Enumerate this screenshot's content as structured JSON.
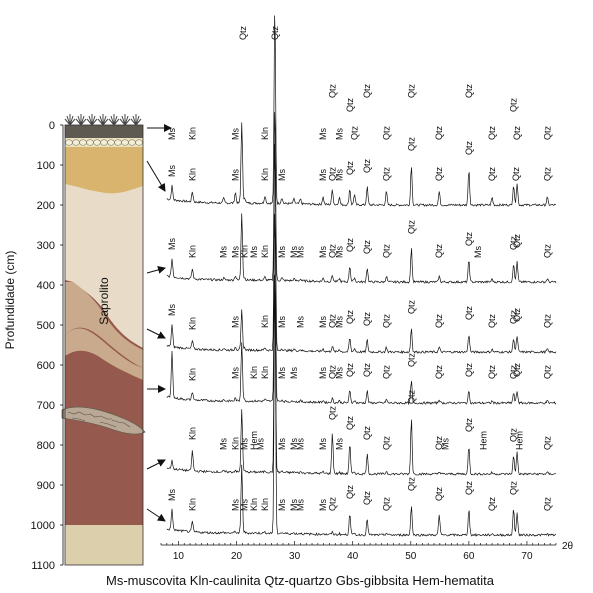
{
  "profile": {
    "depth_axis_label": "Profundidade (cm)",
    "depth_ticks": [
      "0",
      "100",
      "200",
      "300",
      "400",
      "500",
      "600",
      "700",
      "800",
      "900",
      "1000",
      "1100"
    ],
    "horizon_label": "Saprolito",
    "depth_range_cm": [
      0,
      1100
    ],
    "sample_depths_cm": [
      90,
      370,
      510,
      660,
      860,
      960
    ],
    "colors": {
      "topsoil": "#5e5a52",
      "pebble_band": "#e9e3c4",
      "yellow_layer": "#d8b46e",
      "saprolite_light": "#e8dcc8",
      "saprolite_mid": "#c9aa8c",
      "lower_red": "#955a4d",
      "base_layer": "#dccfab",
      "grass": "#444444"
    }
  },
  "xrd": {
    "x_axis_label": "2θ",
    "x_ticks": [
      "10",
      "20",
      "30",
      "40",
      "50",
      "60",
      "70"
    ],
    "x_range": [
      7,
      75
    ],
    "top_labels": [
      {
        "text": "Qtz",
        "x": 21.1,
        "row": 0
      },
      {
        "text": "Qtz",
        "x": 26.6,
        "row": 0
      },
      {
        "text": "Ms",
        "x": 8.9,
        "row": 2
      },
      {
        "text": "Kln",
        "x": 12.4,
        "row": 2
      },
      {
        "text": "Ms",
        "x": 19.8,
        "row": 2
      },
      {
        "text": "Kln",
        "x": 24.9,
        "row": 2
      },
      {
        "text": "Ms",
        "x": 34.9,
        "row": 2
      },
      {
        "text": "Ms",
        "x": 37.7,
        "row": 2
      },
      {
        "text": "Qtz",
        "x": 36.5,
        "row": 1
      },
      {
        "text": "Qtz",
        "x": 39.5,
        "row": 1
      },
      {
        "text": "Qtz",
        "x": 40.3,
        "row": 2
      },
      {
        "text": "Qtz",
        "x": 42.5,
        "row": 1
      },
      {
        "text": "Qtz",
        "x": 45.8,
        "row": 2
      },
      {
        "text": "Qtz",
        "x": 50.1,
        "row": 1
      },
      {
        "text": "Qtz",
        "x": 54.9,
        "row": 2
      },
      {
        "text": "Qtz",
        "x": 60.0,
        "row": 1
      },
      {
        "text": "Qtz",
        "x": 64.0,
        "row": 2
      },
      {
        "text": "Qtz",
        "x": 67.7,
        "row": 1
      },
      {
        "text": "Qtz",
        "x": 68.3,
        "row": 2
      },
      {
        "text": "Qtz",
        "x": 73.5,
        "row": 2
      }
    ],
    "patterns": [
      {
        "depth_cm": 90,
        "labels": [
          {
            "text": "Ms",
            "x": 8.9
          },
          {
            "text": "Kln",
            "x": 12.4
          },
          {
            "text": "Ms",
            "x": 19.8
          },
          {
            "text": "Ms",
            "x": 27.8
          },
          {
            "text": "Kln",
            "x": 24.9
          },
          {
            "text": "Ms",
            "x": 34.9
          },
          {
            "text": "Ms",
            "x": 37.7
          },
          {
            "text": "Qtz",
            "x": 36.5
          },
          {
            "text": "Qtz",
            "x": 39.5
          },
          {
            "text": "Qtz",
            "x": 42.5
          },
          {
            "text": "Qtz",
            "x": 45.8
          },
          {
            "text": "Qtz",
            "x": 50.1
          },
          {
            "text": "Qtz",
            "x": 54.9
          },
          {
            "text": "Qtz",
            "x": 60.0
          },
          {
            "text": "Qtz",
            "x": 64.0
          },
          {
            "text": "Qtz",
            "x": 68.1
          },
          {
            "text": "Qtz",
            "x": 73.5
          }
        ]
      },
      {
        "depth_cm": 370,
        "labels": [
          {
            "text": "Ms",
            "x": 8.9
          },
          {
            "text": "Kln",
            "x": 12.4
          },
          {
            "text": "Ms",
            "x": 17.8
          },
          {
            "text": "Ms",
            "x": 19.8
          },
          {
            "text": "Kln",
            "x": 21.4
          },
          {
            "text": "Ms",
            "x": 23.0
          },
          {
            "text": "Kln",
            "x": 24.9
          },
          {
            "text": "Ms",
            "x": 27.8
          },
          {
            "text": "Ms",
            "x": 29.9
          },
          {
            "text": "Ms",
            "x": 31.0
          },
          {
            "text": "Ms",
            "x": 34.9
          },
          {
            "text": "Ms",
            "x": 37.7
          },
          {
            "text": "Qtz",
            "x": 36.5
          },
          {
            "text": "Qtz",
            "x": 39.5
          },
          {
            "text": "Qtz",
            "x": 42.5
          },
          {
            "text": "Qtz",
            "x": 45.8
          },
          {
            "text": "Qtz",
            "x": 50.1
          },
          {
            "text": "Qtz",
            "x": 54.9
          },
          {
            "text": "Qtz",
            "x": 60.0
          },
          {
            "text": "Ms",
            "x": 61.6
          },
          {
            "text": "Qtz",
            "x": 67.7
          },
          {
            "text": "Qtz",
            "x": 68.3
          },
          {
            "text": "Qtz",
            "x": 73.5
          }
        ]
      },
      {
        "depth_cm": 510,
        "labels": [
          {
            "text": "Ms",
            "x": 8.9
          },
          {
            "text": "Kln",
            "x": 12.4
          },
          {
            "text": "Ms",
            "x": 19.8
          },
          {
            "text": "Kln",
            "x": 24.9
          },
          {
            "text": "Ms",
            "x": 27.8
          },
          {
            "text": "Ms",
            "x": 31.0
          },
          {
            "text": "Ms",
            "x": 34.9
          },
          {
            "text": "Ms",
            "x": 37.7
          },
          {
            "text": "Qtz",
            "x": 36.5
          },
          {
            "text": "Qtz",
            "x": 39.5
          },
          {
            "text": "Qtz",
            "x": 42.5
          },
          {
            "text": "Qtz",
            "x": 45.8
          },
          {
            "text": "Qtz",
            "x": 50.1
          },
          {
            "text": "Qtz",
            "x": 54.9
          },
          {
            "text": "Qtz",
            "x": 60.0
          },
          {
            "text": "Qtz",
            "x": 64.0
          },
          {
            "text": "Qtz",
            "x": 67.7
          },
          {
            "text": "Qtz",
            "x": 68.3
          },
          {
            "text": "Qtz",
            "x": 73.5
          }
        ]
      },
      {
        "depth_cm": 660,
        "labels": [
          {
            "text": "Kln",
            "x": 12.4
          },
          {
            "text": "Ms",
            "x": 19.8
          },
          {
            "text": "Kln",
            "x": 23.0
          },
          {
            "text": "Kln",
            "x": 24.9
          },
          {
            "text": "Ms",
            "x": 27.8
          },
          {
            "text": "Ms",
            "x": 29.9
          },
          {
            "text": "Ms",
            "x": 34.9
          },
          {
            "text": "Ms",
            "x": 37.7
          },
          {
            "text": "Qtz",
            "x": 36.5
          },
          {
            "text": "Qtz",
            "x": 39.5
          },
          {
            "text": "Qtz",
            "x": 42.5
          },
          {
            "text": "Qtz",
            "x": 45.8
          },
          {
            "text": "Qtz",
            "x": 50.1
          },
          {
            "text": "Qtz",
            "x": 54.9
          },
          {
            "text": "Qtz",
            "x": 60.0
          },
          {
            "text": "Qtz",
            "x": 64.0
          },
          {
            "text": "Qtz",
            "x": 67.7
          },
          {
            "text": "Qtz",
            "x": 68.3
          },
          {
            "text": "Qtz",
            "x": 73.5
          }
        ]
      },
      {
        "depth_cm": 860,
        "labels": [
          {
            "text": "Kln",
            "x": 12.4
          },
          {
            "text": "Ms",
            "x": 17.8
          },
          {
            "text": "Kln",
            "x": 19.8
          },
          {
            "text": "Ms",
            "x": 21.4
          },
          {
            "text": "Hem",
            "x": 23.0
          },
          {
            "text": "Ms",
            "x": 24.1
          },
          {
            "text": "Ms",
            "x": 27.8
          },
          {
            "text": "Ms",
            "x": 29.9
          },
          {
            "text": "Ms",
            "x": 31.0
          },
          {
            "text": "Ms",
            "x": 34.9
          },
          {
            "text": "Qtz",
            "x": 36.5
          },
          {
            "text": "Ms",
            "x": 37.7
          },
          {
            "text": "Qtz",
            "x": 39.5
          },
          {
            "text": "Qtz",
            "x": 42.5
          },
          {
            "text": "Qtz",
            "x": 45.8
          },
          {
            "text": "Qtz",
            "x": 50.1
          },
          {
            "text": "Qtz",
            "x": 54.9
          },
          {
            "text": "Ms",
            "x": 56.0
          },
          {
            "text": "Qtz",
            "x": 60.0
          },
          {
            "text": "Hem",
            "x": 62.5
          },
          {
            "text": "Qtz",
            "x": 67.7
          },
          {
            "text": "Hem",
            "x": 68.7
          },
          {
            "text": "Qtz",
            "x": 73.5
          }
        ]
      },
      {
        "depth_cm": 960,
        "labels": [
          {
            "text": "Ms",
            "x": 8.9
          },
          {
            "text": "Kln",
            "x": 12.4
          },
          {
            "text": "Ms",
            "x": 19.8
          },
          {
            "text": "Ms",
            "x": 21.4
          },
          {
            "text": "Kln",
            "x": 23.0
          },
          {
            "text": "Kln",
            "x": 24.9
          },
          {
            "text": "Ms",
            "x": 27.8
          },
          {
            "text": "Ms",
            "x": 29.9
          },
          {
            "text": "Ms",
            "x": 31.0
          },
          {
            "text": "Ms",
            "x": 34.9
          },
          {
            "text": "Qtz",
            "x": 36.5
          },
          {
            "text": "Qtz",
            "x": 39.5
          },
          {
            "text": "Qtz",
            "x": 42.5
          },
          {
            "text": "Qtz",
            "x": 45.8
          },
          {
            "text": "Qtz",
            "x": 50.1
          },
          {
            "text": "Qtz",
            "x": 54.9
          },
          {
            "text": "Qtz",
            "x": 60.0
          },
          {
            "text": "Qtz",
            "x": 64.0
          },
          {
            "text": "Qtz",
            "x": 67.7
          },
          {
            "text": "Qtz",
            "x": 73.5
          }
        ]
      }
    ]
  },
  "caption": "Ms-muscovita Kln-caulinita Qtz-quartzo Gbs-gibbsita Hem-hematita"
}
